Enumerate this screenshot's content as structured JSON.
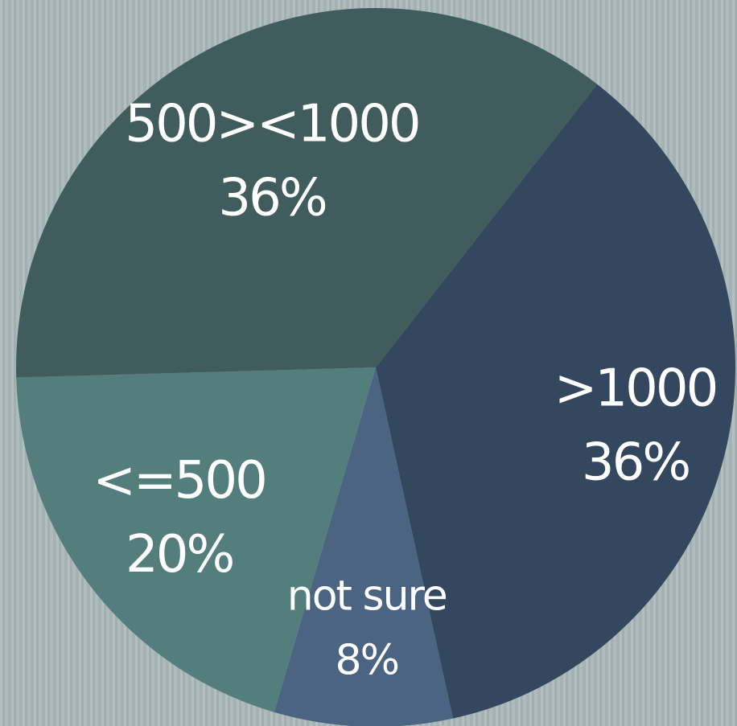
{
  "chart_data": {
    "type": "pie",
    "title": "",
    "start_angle_deg": 38,
    "categories": [
      ">1000",
      "not sure",
      "<=500",
      "500><1000"
    ],
    "values": [
      36,
      8,
      20,
      36
    ],
    "value_labels": [
      "36%",
      "8%",
      "20%",
      "36%"
    ],
    "colors": [
      "#33475f",
      "#4a6482",
      "#547e7c",
      "#405c5c"
    ],
    "legend": "none",
    "labels_inside": true
  }
}
